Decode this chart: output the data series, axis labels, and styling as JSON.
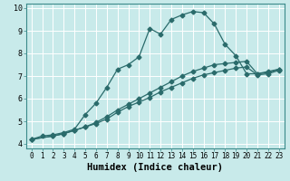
{
  "title": "",
  "xlabel": "Humidex (Indice chaleur)",
  "background_color": "#c8eaea",
  "grid_color": "#b0d8d8",
  "line_color": "#2a6b6b",
  "xlim": [
    -0.5,
    23.5
  ],
  "ylim": [
    3.8,
    10.2
  ],
  "xticks": [
    0,
    1,
    2,
    3,
    4,
    5,
    6,
    7,
    8,
    9,
    10,
    11,
    12,
    13,
    14,
    15,
    16,
    17,
    18,
    19,
    20,
    21,
    22,
    23
  ],
  "yticks": [
    4,
    5,
    6,
    7,
    8,
    9,
    10
  ],
  "curve1_x": [
    0,
    1,
    2,
    3,
    4,
    5,
    6,
    7,
    8,
    9,
    10,
    11,
    12,
    13,
    14,
    15,
    16,
    17,
    18,
    19,
    20,
    21,
    22,
    23
  ],
  "curve1_y": [
    4.2,
    4.35,
    4.4,
    4.5,
    4.65,
    5.3,
    5.8,
    6.5,
    7.3,
    7.5,
    7.85,
    9.1,
    8.85,
    9.5,
    9.7,
    9.85,
    9.8,
    9.3,
    8.4,
    7.9,
    7.1,
    7.1,
    7.2,
    7.3
  ],
  "curve2_x": [
    0,
    2,
    3,
    4,
    5,
    6,
    7,
    8,
    9,
    10,
    11,
    12,
    13,
    14,
    15,
    16,
    17,
    18,
    19,
    20,
    21,
    22,
    23
  ],
  "curve2_y": [
    4.2,
    4.35,
    4.45,
    4.6,
    4.75,
    4.95,
    5.2,
    5.5,
    5.75,
    6.0,
    6.25,
    6.5,
    6.75,
    7.0,
    7.2,
    7.35,
    7.5,
    7.55,
    7.6,
    7.65,
    7.1,
    7.15,
    7.3
  ],
  "curve3_x": [
    0,
    2,
    3,
    4,
    5,
    6,
    7,
    8,
    9,
    10,
    11,
    12,
    13,
    14,
    15,
    16,
    17,
    18,
    19,
    20,
    21,
    22,
    23
  ],
  "curve3_y": [
    4.2,
    4.35,
    4.45,
    4.6,
    4.75,
    4.9,
    5.1,
    5.4,
    5.65,
    5.85,
    6.05,
    6.3,
    6.5,
    6.7,
    6.9,
    7.05,
    7.15,
    7.25,
    7.35,
    7.4,
    7.05,
    7.1,
    7.25
  ],
  "marker": "D",
  "markersize": 2.5,
  "linewidth": 0.9,
  "tick_fontsize": 5.5,
  "xlabel_fontsize": 7.5
}
